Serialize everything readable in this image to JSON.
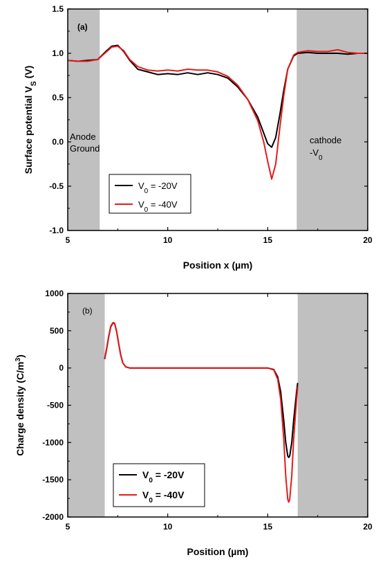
{
  "colors": {
    "series1": "#000000",
    "series2": "#e41a1c",
    "electrode": "#c0c0c0"
  },
  "chart_data": [
    {
      "type": "line",
      "panel_label": "(a)",
      "xlabel": "Position x (µm)",
      "ylabel_main": "Surface potential V",
      "ylabel_sub": "S",
      "ylabel_unit": " (V)",
      "xlim": [
        5,
        20
      ],
      "ylim": [
        -1.0,
        1.5
      ],
      "xticks": [
        5,
        10,
        15,
        20
      ],
      "xtick_labels": [
        "5",
        "10",
        "15",
        "20"
      ],
      "yticks": [
        -1.0,
        -0.5,
        0.0,
        0.5,
        1.0,
        1.5
      ],
      "ytick_labels": [
        "-1.0",
        "-0.5",
        "0.0",
        "0.5",
        "1.0",
        "1.5"
      ],
      "shaded_regions": [
        [
          5,
          6.6
        ],
        [
          16.45,
          20
        ]
      ],
      "annotations": {
        "anode_line1": "Anode",
        "anode_line2": "Ground",
        "cathode_line1": "cathode",
        "cathode_prefix": "-V",
        "cathode_sub": "0"
      },
      "legend_placement": "bottom-left",
      "series": [
        {
          "name_prefix": "V",
          "name_sub": "0",
          "name_suffix": " = -20V",
          "x": [
            5.0,
            5.5,
            6.0,
            6.5,
            6.9,
            7.2,
            7.5,
            7.8,
            8.1,
            8.5,
            9.0,
            9.5,
            10.0,
            10.5,
            11.0,
            11.5,
            12.0,
            12.5,
            13.0,
            13.5,
            14.0,
            14.5,
            14.8,
            15.0,
            15.2,
            15.4,
            15.6,
            15.8,
            16.0,
            16.3,
            16.5,
            17.0,
            17.5,
            18.0,
            18.5,
            19.0,
            19.5,
            20.0
          ],
          "y": [
            0.92,
            0.91,
            0.92,
            0.93,
            1.02,
            1.08,
            1.09,
            1.02,
            0.92,
            0.82,
            0.79,
            0.76,
            0.77,
            0.76,
            0.78,
            0.76,
            0.78,
            0.76,
            0.72,
            0.62,
            0.48,
            0.28,
            0.1,
            -0.02,
            -0.06,
            0.05,
            0.3,
            0.58,
            0.82,
            0.97,
            1.0,
            1.01,
            1.0,
            1.0,
            1.0,
            0.99,
            1.0,
            1.0
          ]
        },
        {
          "name_prefix": "V",
          "name_sub": "0",
          "name_suffix": " = -40V",
          "x": [
            5.0,
            5.5,
            6.0,
            6.5,
            6.9,
            7.2,
            7.5,
            7.8,
            8.1,
            8.5,
            9.0,
            9.5,
            10.0,
            10.5,
            11.0,
            11.5,
            12.0,
            12.5,
            13.0,
            13.5,
            14.0,
            14.5,
            14.8,
            15.0,
            15.2,
            15.4,
            15.6,
            15.8,
            16.0,
            16.3,
            16.5,
            17.0,
            17.5,
            18.0,
            18.5,
            19.0,
            19.5,
            20.0
          ],
          "y": [
            0.92,
            0.91,
            0.91,
            0.93,
            1.01,
            1.07,
            1.08,
            1.03,
            0.93,
            0.85,
            0.81,
            0.8,
            0.81,
            0.8,
            0.82,
            0.81,
            0.81,
            0.79,
            0.74,
            0.64,
            0.48,
            0.24,
            0.0,
            -0.22,
            -0.42,
            -0.25,
            0.15,
            0.52,
            0.82,
            0.98,
            1.01,
            1.03,
            1.02,
            1.02,
            1.04,
            1.01,
            1.0,
            1.0
          ]
        }
      ]
    },
    {
      "type": "line",
      "panel_label": "(b)",
      "xlabel": "Position (µm)",
      "ylabel_main": "Charge density (C/m",
      "ylabel_sup": "3",
      "ylabel_unit": ")",
      "xlim": [
        5,
        20
      ],
      "ylim": [
        -2000,
        1000
      ],
      "xticks": [
        5,
        10,
        15,
        20
      ],
      "xtick_labels": [
        "5",
        "10",
        "15",
        "20"
      ],
      "yticks": [
        -2000,
        -1500,
        -1000,
        -500,
        0,
        500,
        1000
      ],
      "ytick_labels": [
        "-2000",
        "-1500",
        "-1000",
        "-500",
        "0",
        "500",
        "1000"
      ],
      "shaded_regions": [
        [
          5,
          6.85
        ],
        [
          16.5,
          20
        ]
      ],
      "legend_placement": "bottom-left",
      "series": [
        {
          "name_prefix": "V",
          "name_sub": "0",
          "name_suffix": " = -20V",
          "x": [
            6.85,
            6.95,
            7.05,
            7.15,
            7.25,
            7.3,
            7.35,
            7.45,
            7.55,
            7.65,
            7.75,
            7.9,
            8.1,
            8.5,
            10.0,
            12.0,
            14.0,
            15.0,
            15.3,
            15.5,
            15.65,
            15.8,
            15.9,
            16.0,
            16.05,
            16.1,
            16.2,
            16.3,
            16.45,
            16.5
          ],
          "y": [
            120,
            260,
            420,
            550,
            600,
            605,
            590,
            480,
            320,
            170,
            70,
            15,
            0,
            0,
            0,
            0,
            0,
            0,
            -20,
            -120,
            -320,
            -700,
            -1000,
            -1180,
            -1200,
            -1180,
            -1000,
            -700,
            -300,
            -200
          ]
        },
        {
          "name_prefix": "V",
          "name_sub": "0",
          "name_suffix": " = -40V",
          "x": [
            6.85,
            6.95,
            7.05,
            7.15,
            7.25,
            7.3,
            7.35,
            7.45,
            7.55,
            7.65,
            7.75,
            7.9,
            8.1,
            8.5,
            10.0,
            12.0,
            14.0,
            15.0,
            15.3,
            15.5,
            15.65,
            15.8,
            15.9,
            16.0,
            16.05,
            16.1,
            16.2,
            16.3,
            16.45,
            16.5
          ],
          "y": [
            130,
            270,
            430,
            560,
            605,
            610,
            595,
            485,
            325,
            175,
            72,
            15,
            0,
            0,
            0,
            0,
            0,
            0,
            -25,
            -150,
            -420,
            -950,
            -1450,
            -1760,
            -1800,
            -1760,
            -1450,
            -950,
            -400,
            -250
          ]
        }
      ]
    }
  ]
}
